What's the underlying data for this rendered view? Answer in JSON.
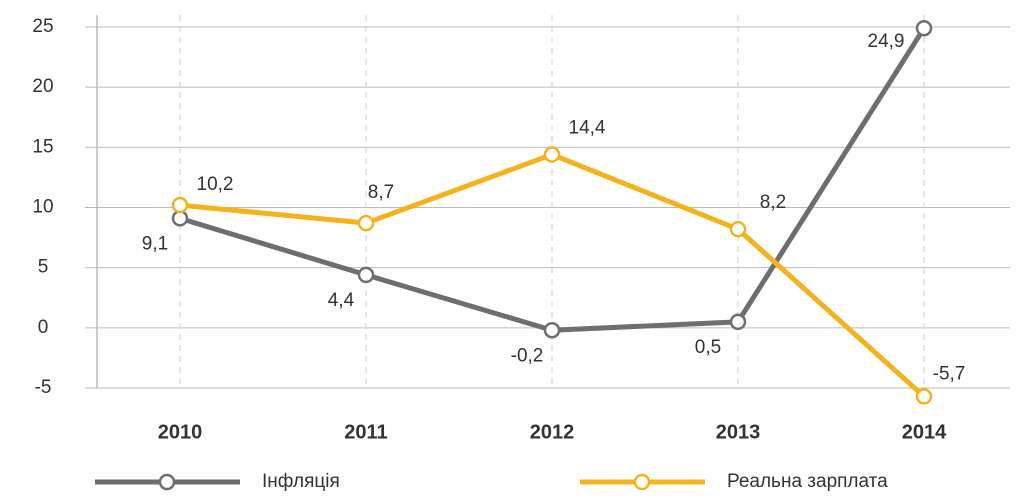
{
  "chart_data": {
    "type": "line",
    "categories": [
      "2010",
      "2011",
      "2012",
      "2013",
      "2014"
    ],
    "series": [
      {
        "name": "Інфляція",
        "color": "#6d6e71",
        "values": [
          9.1,
          4.4,
          -0.2,
          0.5,
          24.9
        ],
        "value_labels": [
          "9,1",
          "4,4",
          "-0,2",
          "0,5",
          "24,9"
        ]
      },
      {
        "name": "Реальна зарплата",
        "color": "#f5b21b",
        "values": [
          10.2,
          8.7,
          14.4,
          8.2,
          -5.7
        ],
        "value_labels": [
          "10,2",
          "8,7",
          "14,4",
          "8,2",
          "-5,7"
        ]
      }
    ],
    "ylim": [
      -5,
      25
    ],
    "yticks": [
      -5,
      0,
      5,
      10,
      15,
      20,
      25
    ],
    "grid": true,
    "legend": "bottom"
  }
}
